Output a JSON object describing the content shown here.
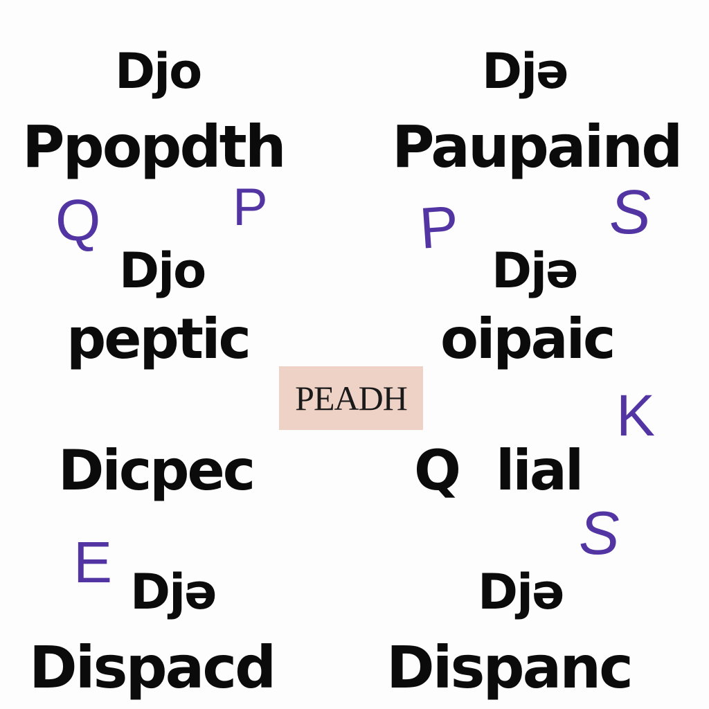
{
  "colors": {
    "background": "#fdfdfd",
    "text": "#0b0b0b",
    "accent_letters": "#5234a3",
    "center_box": "#eed2c6"
  },
  "words": {
    "top_left_dj": "Djo",
    "top_left_main": "Ppopdth",
    "top_right_dj": "Djə",
    "top_right_main": "Paupaind",
    "mid_left_dj": "Djo",
    "mid_left_main": "peptic",
    "mid_right_dj": "Djə",
    "mid_right_main": "oipaic",
    "lower_left_main": "Dicpec",
    "lower_right_q": "Q",
    "lower_right_main": "lial",
    "bottom_left_dj": "Djə",
    "bottom_left_main": "Dispacd",
    "bottom_right_dj": "Djə",
    "bottom_right_main": "Dispanc"
  },
  "letters": {
    "q": "Q",
    "p1": "P",
    "p2": "P",
    "s1": "S",
    "k": "K",
    "s2": "S",
    "e": "E"
  },
  "center_label": "PEADH"
}
